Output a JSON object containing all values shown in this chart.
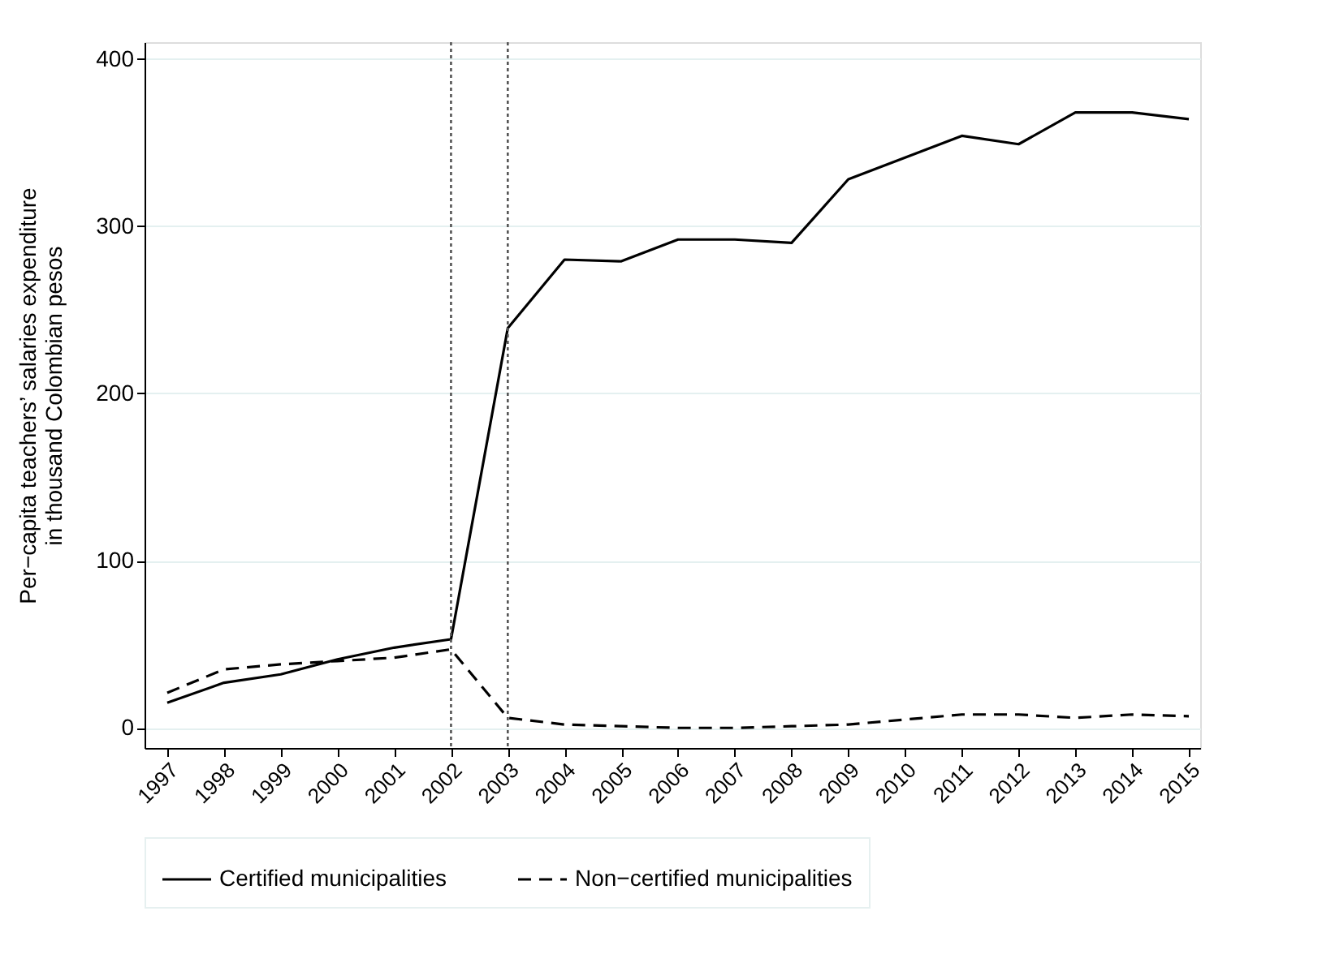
{
  "chart_data": {
    "type": "line",
    "ylabel": "Per−capita teachers’ salaries expenditure\nin thousand Colombian pesos",
    "x": [
      1997,
      1998,
      1999,
      2000,
      2001,
      2002,
      2003,
      2004,
      2005,
      2006,
      2007,
      2008,
      2009,
      2010,
      2011,
      2012,
      2013,
      2014,
      2015
    ],
    "series": [
      {
        "name": "Certified municipalities",
        "color": "#000000",
        "line_style": "solid",
        "values": [
          15,
          27,
          32,
          41,
          48,
          53,
          239,
          280,
          279,
          292,
          292,
          290,
          328,
          341,
          354,
          349,
          368,
          368,
          364
        ]
      },
      {
        "name": "Non−certified municipalities",
        "color": "#000000",
        "line_style": "dashed",
        "values": [
          21,
          35,
          38,
          40,
          42,
          47,
          6,
          2,
          1,
          0,
          0,
          1,
          2,
          5,
          8,
          8,
          6,
          8,
          7
        ]
      }
    ],
    "xlim": [
      1996.6,
      2015.2
    ],
    "xticks": [
      1997,
      1998,
      1999,
      2000,
      2001,
      2002,
      2003,
      2004,
      2005,
      2006,
      2007,
      2008,
      2009,
      2010,
      2011,
      2012,
      2013,
      2014,
      2015
    ],
    "ylim": [
      -12,
      410
    ],
    "yticks": [
      0,
      100,
      200,
      300,
      400
    ],
    "ref_lines": [
      {
        "axis": "x",
        "value": 2002,
        "line_style": "dotted",
        "color": "#555555"
      },
      {
        "axis": "x",
        "value": 2003,
        "line_style": "dotted",
        "color": "#555555"
      }
    ],
    "grid": "y",
    "legend": "bottom",
    "marker": "none"
  }
}
